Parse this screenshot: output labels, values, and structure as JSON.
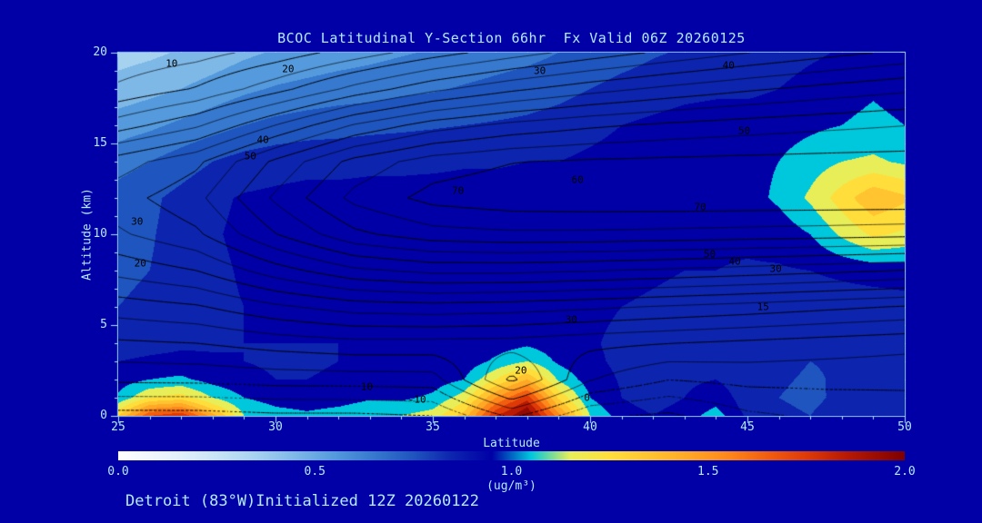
{
  "title": "BCOC Latitudinal Y-Section 66hr  Fx Valid 06Z 20260125",
  "footer": "Detroit (83°W)Initialized 12Z 20260122",
  "colors": {
    "background": "#0000A6",
    "text": "#B4EAFF",
    "axis": "#A8E4FF",
    "contour_line": "#000000"
  },
  "chart_data": {
    "type": "heatmap",
    "title": "BCOC Latitudinal Y-Section 66hr  Fx Valid 06Z 20260125",
    "xlabel": "Latitude",
    "ylabel": "Altitude (km)",
    "xlim": [
      25,
      50
    ],
    "ylim": [
      0,
      20
    ],
    "x_ticks": [
      25,
      30,
      35,
      40,
      45,
      50
    ],
    "y_ticks": [
      0,
      5,
      10,
      15,
      20
    ],
    "x_minor_step": 1,
    "y_minor_step": 1,
    "grid": false,
    "colorbar": {
      "min": 0.0,
      "max": 2.0,
      "ticks": [
        "0.0",
        "0.5",
        "1.0",
        "1.5",
        "2.0"
      ],
      "units": "(ug/m³)",
      "stops": [
        [
          0.0,
          "#FFFFFF"
        ],
        [
          0.15,
          "#E4F1FB"
        ],
        [
          0.25,
          "#C8E4F6"
        ],
        [
          0.35,
          "#A6D2EF"
        ],
        [
          0.45,
          "#7EB8E7"
        ],
        [
          0.55,
          "#549ADC"
        ],
        [
          0.65,
          "#3679CE"
        ],
        [
          0.75,
          "#1F55BE"
        ],
        [
          0.85,
          "#0C24AE"
        ],
        [
          0.95,
          "#0000A6"
        ],
        [
          1.05,
          "#00C8DC"
        ],
        [
          1.15,
          "#E8EE58"
        ],
        [
          1.25,
          "#FFDE3C"
        ],
        [
          1.35,
          "#FFC430"
        ],
        [
          1.45,
          "#FFA826"
        ],
        [
          1.55,
          "#FF881A"
        ],
        [
          1.65,
          "#F25E10"
        ],
        [
          1.75,
          "#DE3A08"
        ],
        [
          1.85,
          "#B81A04"
        ],
        [
          2.0,
          "#7E0000"
        ]
      ]
    },
    "fill_field": {
      "name": "BCOC concentration (ug/m³), estimated from shading",
      "band_step": 0.1,
      "lats": [
        25,
        26,
        27,
        28,
        29,
        30,
        31,
        32,
        33,
        34,
        35,
        36,
        37,
        38,
        39,
        40,
        41,
        42,
        43,
        44,
        45,
        46,
        47,
        48,
        49,
        50
      ],
      "alts": [
        0,
        0.5,
        1,
        2,
        3,
        4,
        6,
        8,
        10,
        12,
        14,
        16,
        18,
        20
      ],
      "values": [
        [
          1.3,
          1.7,
          1.8,
          1.45,
          1.1,
          1.05,
          1.02,
          1.05,
          1.08,
          1.1,
          1.15,
          1.35,
          1.8,
          2.0,
          1.55,
          1.1,
          0.95,
          0.9,
          0.95,
          1.05,
          0.88,
          0.82,
          0.8,
          0.85,
          0.85,
          0.88
        ],
        [
          1.15,
          1.45,
          1.5,
          1.25,
          1.05,
          1.0,
          0.98,
          1.0,
          1.03,
          1.04,
          1.08,
          1.25,
          1.65,
          1.9,
          1.4,
          1.05,
          0.92,
          0.88,
          0.92,
          1.0,
          0.86,
          0.81,
          0.79,
          0.83,
          0.83,
          0.86
        ],
        [
          1.02,
          1.2,
          1.25,
          1.1,
          1.0,
          0.96,
          0.94,
          0.96,
          0.99,
          0.98,
          1.02,
          1.15,
          1.5,
          1.75,
          1.28,
          1.0,
          0.9,
          0.86,
          0.9,
          0.96,
          0.85,
          0.8,
          0.78,
          0.82,
          0.82,
          0.85
        ],
        [
          0.95,
          1.0,
          1.02,
          0.96,
          0.92,
          0.9,
          0.9,
          0.91,
          0.93,
          0.93,
          0.95,
          1.0,
          1.2,
          1.4,
          1.08,
          0.95,
          0.89,
          0.85,
          0.88,
          0.9,
          0.84,
          0.81,
          0.79,
          0.81,
          0.81,
          0.84
        ],
        [
          0.9,
          0.92,
          0.93,
          0.91,
          0.9,
          0.89,
          0.89,
          0.9,
          0.91,
          0.91,
          0.92,
          0.94,
          1.02,
          1.1,
          0.98,
          0.92,
          0.88,
          0.85,
          0.87,
          0.88,
          0.84,
          0.82,
          0.8,
          0.81,
          0.81,
          0.83
        ],
        [
          0.84,
          0.86,
          0.88,
          0.89,
          0.9,
          0.9,
          0.9,
          0.9,
          0.91,
          0.91,
          0.91,
          0.92,
          0.95,
          0.98,
          0.94,
          0.91,
          0.88,
          0.86,
          0.86,
          0.87,
          0.85,
          0.83,
          0.82,
          0.82,
          0.82,
          0.84
        ],
        [
          0.8,
          0.82,
          0.85,
          0.88,
          0.9,
          0.91,
          0.91,
          0.91,
          0.92,
          0.92,
          0.92,
          0.92,
          0.93,
          0.93,
          0.93,
          0.92,
          0.9,
          0.89,
          0.88,
          0.88,
          0.87,
          0.86,
          0.85,
          0.85,
          0.85,
          0.86
        ],
        [
          0.78,
          0.8,
          0.84,
          0.88,
          0.91,
          0.92,
          0.93,
          0.93,
          0.93,
          0.93,
          0.94,
          0.94,
          0.94,
          0.94,
          0.94,
          0.93,
          0.92,
          0.91,
          0.9,
          0.9,
          0.89,
          0.89,
          0.9,
          0.92,
          0.94,
          0.95
        ],
        [
          0.76,
          0.79,
          0.84,
          0.89,
          0.92,
          0.93,
          0.94,
          0.94,
          0.94,
          0.94,
          0.95,
          0.95,
          0.95,
          0.95,
          0.95,
          0.94,
          0.93,
          0.92,
          0.92,
          0.92,
          0.92,
          0.94,
          1.0,
          1.12,
          1.22,
          1.18
        ],
        [
          0.74,
          0.78,
          0.83,
          0.88,
          0.91,
          0.92,
          0.93,
          0.93,
          0.93,
          0.93,
          0.94,
          0.94,
          0.94,
          0.94,
          0.94,
          0.93,
          0.92,
          0.92,
          0.92,
          0.93,
          0.96,
          1.02,
          1.12,
          1.25,
          1.38,
          1.32
        ],
        [
          0.66,
          0.7,
          0.75,
          0.8,
          0.84,
          0.86,
          0.87,
          0.87,
          0.88,
          0.88,
          0.88,
          0.89,
          0.89,
          0.9,
          0.9,
          0.92,
          0.94,
          0.95,
          0.96,
          0.96,
          0.97,
          1.0,
          1.05,
          1.1,
          1.12,
          1.08
        ],
        [
          0.55,
          0.58,
          0.62,
          0.66,
          0.7,
          0.73,
          0.75,
          0.76,
          0.77,
          0.78,
          0.79,
          0.8,
          0.81,
          0.82,
          0.84,
          0.87,
          0.9,
          0.92,
          0.94,
          0.95,
          0.95,
          0.96,
          0.98,
          1.0,
          1.02,
          1.0
        ],
        [
          0.44,
          0.47,
          0.5,
          0.54,
          0.58,
          0.61,
          0.63,
          0.65,
          0.66,
          0.68,
          0.69,
          0.71,
          0.73,
          0.75,
          0.77,
          0.8,
          0.83,
          0.85,
          0.87,
          0.88,
          0.88,
          0.9,
          0.94,
          0.97,
          0.99,
          0.97
        ],
        [
          0.36,
          0.38,
          0.41,
          0.44,
          0.48,
          0.51,
          0.53,
          0.55,
          0.57,
          0.59,
          0.61,
          0.63,
          0.65,
          0.67,
          0.7,
          0.73,
          0.76,
          0.79,
          0.81,
          0.82,
          0.83,
          0.85,
          0.88,
          0.91,
          0.92,
          0.9
        ]
      ]
    },
    "contour_field": {
      "name": "overlaid black contours, estimated",
      "levels_start": -10,
      "levels_step": 5,
      "levels_end": 70,
      "negative_style": "dotted",
      "lats": [
        25,
        27.5,
        30,
        32.5,
        35,
        37.5,
        40,
        42.5,
        45,
        47.5,
        50
      ],
      "alts": [
        0,
        2,
        4,
        6,
        8,
        10,
        12,
        14,
        16,
        18,
        20
      ],
      "values": [
        [
          -12,
          -12,
          -11,
          -11,
          -10,
          1,
          -9,
          -11,
          -6,
          -4,
          -3
        ],
        [
          1.1,
          1.3,
          2.2,
          2.5,
          2.8,
          21.2,
          5.3,
          0.1,
          1.5,
          1.5,
          1.3
        ],
        [
          9.2,
          10,
          12.1,
          13.5,
          13.4,
          13,
          11.3,
          10.1,
          8.9,
          7.7,
          6.6
        ],
        [
          17.5,
          19.4,
          24,
          27.3,
          28.1,
          27.3,
          26,
          24.4,
          22.9,
          21.2,
          19.6
        ],
        [
          26.6,
          30,
          37.7,
          43.9,
          46.3,
          46.3,
          45.3,
          44.1,
          42.7,
          41.3,
          39.8
        ],
        [
          34.2,
          39.1,
          49.8,
          58.8,
          63,
          64,
          63.9,
          63.4,
          62.8,
          62.2,
          61.5
        ],
        [
          37.9,
          43.6,
          55.9,
          66.4,
          71.7,
          73.4,
          73.8,
          73.9,
          73.9,
          73.9,
          73.9
        ],
        [
          32.6,
          38.9,
          51.1,
          61.7,
          67.5,
          69.8,
          70.7,
          71.2,
          71.6,
          71.9,
          72.1
        ],
        [
          17.6,
          24.2,
          35.1,
          45.5,
          52.5,
          56.5,
          59.1,
          61,
          62.5,
          63.8,
          64.9
        ],
        [
          5.9,
          10.5,
          18.1,
          26.6,
          33.7,
          38.9,
          43,
          46.3,
          49.2,
          51.7,
          53.9
        ],
        [
          1.2,
          3.1,
          7,
          12.3,
          17.8,
          22.7,
          27.2,
          31.2,
          34.9,
          38.2,
          41.2
        ]
      ]
    },
    "contour_labels": [
      {
        "text": "10",
        "lat": 26.7,
        "alt": 19.4
      },
      {
        "text": "20",
        "lat": 30.4,
        "alt": 19.1
      },
      {
        "text": "30",
        "lat": 38.4,
        "alt": 19.0
      },
      {
        "text": "40",
        "lat": 44.4,
        "alt": 19.3
      },
      {
        "text": "40",
        "lat": 29.6,
        "alt": 15.2
      },
      {
        "text": "50",
        "lat": 29.2,
        "alt": 14.3
      },
      {
        "text": "50",
        "lat": 44.9,
        "alt": 15.7
      },
      {
        "text": "60",
        "lat": 39.6,
        "alt": 13.0
      },
      {
        "text": "70",
        "lat": 35.8,
        "alt": 12.4
      },
      {
        "text": "70",
        "lat": 43.5,
        "alt": 11.5
      },
      {
        "text": "30",
        "lat": 25.6,
        "alt": 10.7
      },
      {
        "text": "20",
        "lat": 25.7,
        "alt": 8.4
      },
      {
        "text": "50",
        "lat": 43.8,
        "alt": 8.9
      },
      {
        "text": "40",
        "lat": 44.6,
        "alt": 8.5
      },
      {
        "text": "30",
        "lat": 45.9,
        "alt": 8.1
      },
      {
        "text": "15",
        "lat": 45.5,
        "alt": 6.0
      },
      {
        "text": "30",
        "lat": 39.4,
        "alt": 5.3
      },
      {
        "text": "20",
        "lat": 37.8,
        "alt": 2.5
      },
      {
        "text": "10",
        "lat": 32.9,
        "alt": 1.6
      },
      {
        "text": "-10",
        "lat": 34.5,
        "alt": 0.9
      },
      {
        "text": "0",
        "lat": 39.9,
        "alt": 1.0
      }
    ]
  }
}
